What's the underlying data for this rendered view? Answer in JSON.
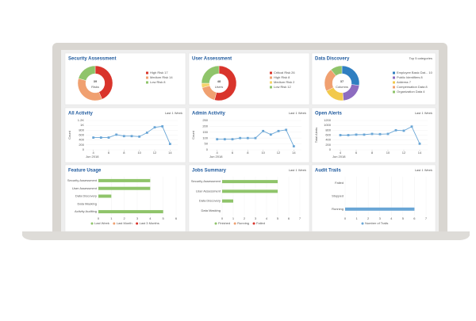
{
  "panels": [
    {
      "type": "donut",
      "title": "Security Assessment",
      "center_value": 39,
      "center_label": "Risks",
      "categories": [
        "High Risk",
        "Medium Risk",
        "Low Risk"
      ],
      "values": [
        17,
        14,
        8
      ],
      "colors": [
        "#d9342b",
        "#f0a070",
        "#8fc46a"
      ]
    },
    {
      "type": "donut",
      "title": "User Assessment",
      "center_value": 48,
      "center_label": "Users",
      "categories": [
        "Critical Risk",
        "High Risk",
        "Medium Risk",
        "Low Risk"
      ],
      "values": [
        26,
        8,
        2,
        12
      ],
      "colors": [
        "#d9342b",
        "#f0a070",
        "#f5d36a",
        "#8fc46a"
      ]
    },
    {
      "type": "donut",
      "title": "Data Discovery",
      "link": "Top 5 categories",
      "center_value": 37,
      "center_label": "Columns",
      "categories": [
        "Employee Basic Dat...",
        "Public Identifiers",
        "Address",
        "Compensation Data",
        "Organization Data"
      ],
      "values": [
        10,
        8,
        7,
        8,
        4
      ],
      "colors": [
        "#2f7fc1",
        "#8d6cc0",
        "#f2c94c",
        "#f0a070",
        "#8fc46a"
      ]
    },
    {
      "type": "line",
      "title": "All Activity",
      "link": "Last 1 Week",
      "x_label": "Jun 2018",
      "y_label": "Count",
      "x": [
        4,
        5,
        6,
        7,
        8,
        9,
        10,
        11,
        12,
        13,
        14
      ],
      "values": [
        500,
        500,
        500,
        620,
        560,
        560,
        540,
        700,
        920,
        960,
        240
      ],
      "xlim": [
        3,
        15
      ],
      "xticks": [
        4,
        6,
        8,
        10,
        12,
        14
      ],
      "ylim": [
        0,
        1200
      ],
      "yticks": [
        0,
        200,
        400,
        600,
        800,
        {
          "value": 1000,
          "label": "1K"
        },
        {
          "value": 1200,
          "label": "1.2K"
        }
      ],
      "color": "#6aa6d6"
    },
    {
      "type": "line",
      "title": "Admin Activity",
      "link": "Last 1 Week",
      "x_label": "Jun 2018",
      "y_label": "Count",
      "x": [
        4,
        5,
        6,
        7,
        8,
        9,
        10,
        11,
        12,
        13,
        14
      ],
      "values": [
        90,
        90,
        90,
        100,
        100,
        100,
        160,
        130,
        160,
        170,
        30
      ],
      "xlim": [
        3,
        15
      ],
      "xticks": [
        4,
        6,
        8,
        10,
        12,
        14
      ],
      "ylim": [
        0,
        250
      ],
      "yticks": [
        0,
        50,
        100,
        150,
        200,
        250
      ],
      "color": "#6aa6d6"
    },
    {
      "type": "line",
      "title": "Open Alerts",
      "link": "Last 1 Week",
      "x_label": "Jun 2018",
      "y_label": "Total Alerts",
      "x": [
        4,
        5,
        6,
        7,
        8,
        9,
        10,
        11,
        12,
        13,
        14
      ],
      "values": [
        600,
        600,
        620,
        620,
        650,
        640,
        650,
        800,
        780,
        950,
        250
      ],
      "xlim": [
        3,
        15
      ],
      "xticks": [
        4,
        6,
        8,
        10,
        12,
        14
      ],
      "ylim": [
        0,
        1200
      ],
      "yticks": [
        0,
        200,
        400,
        600,
        800,
        1000,
        1200
      ],
      "color": "#6aa6d6"
    },
    {
      "type": "hbar",
      "title": "Feature Usage",
      "categories": [
        "Security Assessment",
        "User Assessment",
        "Data Discovery",
        "Data Masking",
        "Activity Auditing"
      ],
      "series": [
        {
          "name": "Last Week",
          "color": "#8fc46a",
          "values": [
            4,
            4,
            1,
            0,
            5
          ]
        },
        {
          "name": "Last Month",
          "color": "#f0a070",
          "values": [
            0,
            0,
            0,
            0,
            0
          ]
        },
        {
          "name": "Last 3 Months",
          "color": "#d9342b",
          "values": [
            0,
            0,
            0,
            0,
            0
          ]
        }
      ],
      "xlim": [
        0,
        6
      ],
      "xticks": [
        0,
        1,
        2,
        3,
        4,
        5,
        6
      ]
    },
    {
      "type": "hbar",
      "title": "Jobs Summary",
      "link": "Last 1 Week",
      "categories": [
        "Security Assessment",
        "User Assessment",
        "Data Discovery",
        "Data Masking"
      ],
      "series": [
        {
          "name": "Finished",
          "color": "#8fc46a",
          "values": [
            5,
            5,
            1,
            0
          ]
        },
        {
          "name": "Running",
          "color": "#f0a070",
          "values": [
            0,
            0,
            0,
            0
          ]
        },
        {
          "name": "Failed",
          "color": "#d9342b",
          "values": [
            0,
            0,
            0,
            0
          ]
        }
      ],
      "xlim": [
        0,
        7
      ],
      "xticks": [
        0,
        1,
        2,
        3,
        4,
        5,
        6,
        7
      ]
    },
    {
      "type": "hbar",
      "title": "Audit Trails",
      "link": "Last 1 Week",
      "categories": [
        "Failed",
        "Stopped",
        "Running"
      ],
      "series": [
        {
          "name": "Number of Trails",
          "color": "#6aa6d6",
          "values": [
            0,
            0,
            6
          ]
        }
      ],
      "xlim": [
        0,
        7
      ],
      "xticks": [
        0,
        1,
        2,
        3,
        4,
        5,
        6,
        7
      ]
    }
  ]
}
